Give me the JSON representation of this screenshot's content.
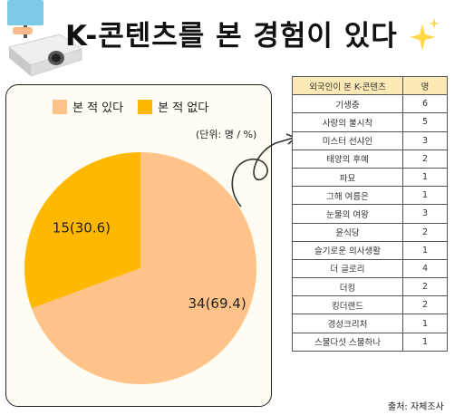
{
  "title": "K-콘텐츠를 본 경험이 있다",
  "legend": [
    "본 적 있다",
    "본 적 없다"
  ],
  "unit_note": "(단위: 명 / %)",
  "colors": {
    "yes": "#ffc38a",
    "no": "#ffb800",
    "header": "#fde9b6"
  },
  "chart_data": {
    "type": "pie",
    "categories": [
      "본 적 있다",
      "본 적 없다"
    ],
    "values": [
      34,
      15
    ],
    "percents": [
      69.4,
      30.6
    ],
    "labels": [
      "34(69.4)",
      "15(30.6)"
    ],
    "colors": [
      "#ffc38a",
      "#ffb800"
    ]
  },
  "table": {
    "headers": [
      "외국인이 본 K-콘텐츠",
      "명"
    ],
    "rows": [
      [
        "기생충",
        "6"
      ],
      [
        "사랑의 불시착",
        "5"
      ],
      [
        "미스터 선샤인",
        "3"
      ],
      [
        "태양의 후예",
        "2"
      ],
      [
        "파묘",
        "1"
      ],
      [
        "그해 여름은",
        "1"
      ],
      [
        "눈물의 여왕",
        "3"
      ],
      [
        "윤식당",
        "2"
      ],
      [
        "슬기로운 의사생활",
        "1"
      ],
      [
        "더 글로리",
        "4"
      ],
      [
        "더킹",
        "2"
      ],
      [
        "킹더랜드",
        "2"
      ],
      [
        "경성크리처",
        "1"
      ],
      [
        "스물다섯 스물하나",
        "1"
      ]
    ]
  },
  "source": "출처: 자체조사"
}
